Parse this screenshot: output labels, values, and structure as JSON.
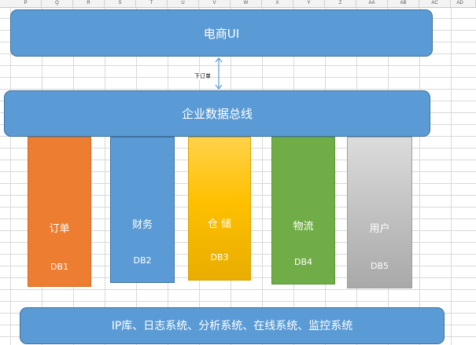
{
  "columns": [
    "P",
    "Q",
    "R",
    "S",
    "T",
    "U",
    "V",
    "W",
    "X",
    "Y",
    "Z",
    "AA",
    "AB",
    "AC",
    "AD"
  ],
  "top_system": {
    "label": "电商UI"
  },
  "connector": {
    "label": "下订单"
  },
  "bus": {
    "label": "企业数据总线"
  },
  "databases": [
    {
      "label": "订单",
      "id": "DB1",
      "color": "#ed7d31"
    },
    {
      "label": "财务",
      "id": "DB2",
      "color": "#5b9bd5"
    },
    {
      "label": "仓 储",
      "id": "DB3",
      "color": "#ffc000"
    },
    {
      "label": "物流",
      "id": "DB4",
      "color": "#70ad47"
    },
    {
      "label": "用户",
      "id": "DB5",
      "color": "#bfbfbf"
    }
  ],
  "bottom_system": {
    "label": "IP库、日志系统、分析系统、在线系统、监控系统"
  }
}
